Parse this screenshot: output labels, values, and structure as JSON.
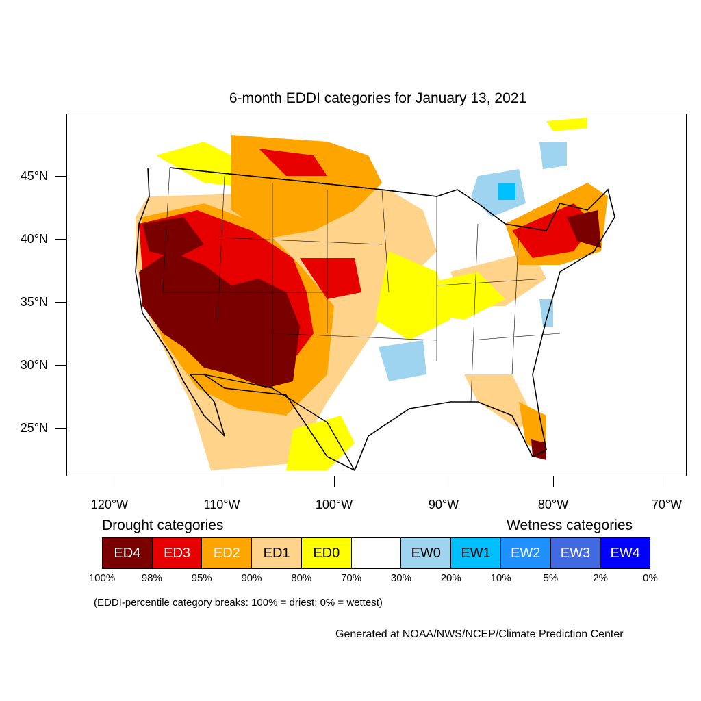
{
  "title": "6-month EDDI categories for January 13, 2021",
  "axes": {
    "latitude_labels": [
      "45°N",
      "40°N",
      "35°N",
      "30°N",
      "25°N"
    ],
    "longitude_labels": [
      "120°W",
      "110°W",
      "100°W",
      "90°W",
      "80°W",
      "70°W"
    ]
  },
  "legend": {
    "drought_heading": "Drought categories",
    "wetness_heading": "Wetness categories",
    "categories": [
      {
        "label": "ED4",
        "color": "#7a0000",
        "text_color": "#ffffff"
      },
      {
        "label": "ED3",
        "color": "#e60000",
        "text_color": "#ffffff"
      },
      {
        "label": "ED2",
        "color": "#ffa500",
        "text_color": "#ffffff"
      },
      {
        "label": "ED1",
        "color": "#ffd38a",
        "text_color": "#000000"
      },
      {
        "label": "ED0",
        "color": "#ffff00",
        "text_color": "#000000"
      },
      {
        "label": "",
        "color": "#ffffff",
        "text_color": "#000000"
      },
      {
        "label": "EW0",
        "color": "#9ed4f0",
        "text_color": "#000000"
      },
      {
        "label": "EW1",
        "color": "#00bfff",
        "text_color": "#000000"
      },
      {
        "label": "EW2",
        "color": "#1e90ff",
        "text_color": "#ffffff"
      },
      {
        "label": "EW3",
        "color": "#4169e1",
        "text_color": "#ffffff"
      },
      {
        "label": "EW4",
        "color": "#0000ff",
        "text_color": "#ffffff"
      }
    ],
    "percentile_breaks": [
      "100%",
      "98%",
      "95%",
      "90%",
      "80%",
      "70%",
      "30%",
      "20%",
      "10%",
      "5%",
      "2%",
      "0%"
    ]
  },
  "break_note": "(EDDI-percentile category breaks: 100% = driest; 0% = wettest)",
  "credit": "Generated at NOAA/NWS/NCEP/Climate Prediction Center"
}
